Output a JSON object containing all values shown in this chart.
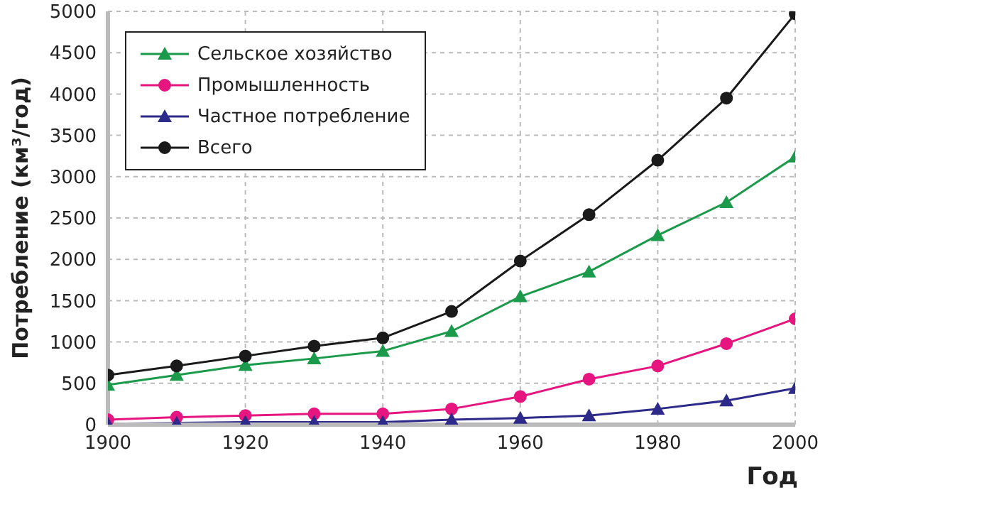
{
  "chart_data": {
    "type": "line",
    "xlabel": "Год",
    "ylabel": "Потребление (км³/год)",
    "x": [
      1900,
      1910,
      1920,
      1930,
      1940,
      1950,
      1960,
      1970,
      1980,
      1990,
      2000
    ],
    "series": [
      {
        "name": "Сельское хозяйство",
        "color": "#1a9a4a",
        "marker": "triangle",
        "values": [
          480,
          600,
          720,
          800,
          890,
          1130,
          1550,
          1850,
          2290,
          2690,
          3240
        ]
      },
      {
        "name": "Промышленность",
        "color": "#e6157f",
        "marker": "circle",
        "values": [
          60,
          90,
          110,
          130,
          130,
          190,
          340,
          550,
          710,
          980,
          1280
        ]
      },
      {
        "name": "Частное потребление",
        "color": "#2e2a8a",
        "marker": "triangle",
        "values": [
          10,
          20,
          30,
          30,
          30,
          60,
          80,
          110,
          190,
          290,
          440
        ]
      },
      {
        "name": "Всего",
        "color": "#1a1a1a",
        "marker": "circle",
        "values": [
          600,
          710,
          830,
          950,
          1050,
          1370,
          1980,
          2540,
          3200,
          3950,
          4970
        ]
      }
    ],
    "xlim": [
      1900,
      2000
    ],
    "xticks": [
      1900,
      1920,
      1940,
      1960,
      1980,
      2000
    ],
    "ylim": [
      0,
      5000
    ],
    "yticks": [
      0,
      500,
      1000,
      1500,
      2000,
      2500,
      3000,
      3500,
      4000,
      4500,
      5000
    ],
    "grid": true,
    "legend": "top left",
    "line_style": "solid"
  }
}
